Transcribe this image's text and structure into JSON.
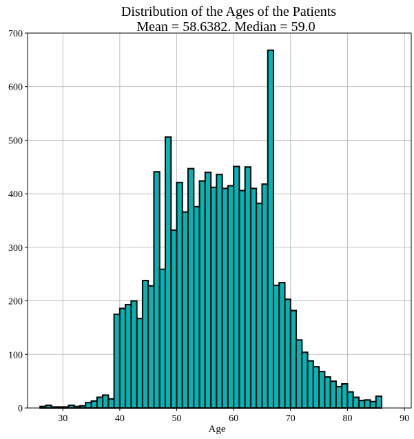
{
  "chart_data": {
    "type": "bar",
    "title": "Distribution of the Ages of the Patients",
    "subtitle": "Mean =  58.6382. Median = 59.0",
    "xlabel": "Age",
    "ylabel": "",
    "xlim": [
      23.8,
      91.2
    ],
    "ylim": [
      0,
      700
    ],
    "xticks": [
      30,
      40,
      50,
      60,
      70,
      80,
      90
    ],
    "yticks": [
      0,
      100,
      200,
      300,
      400,
      500,
      600,
      700
    ],
    "grid": true,
    "bar_color": "#00b5b5",
    "edge_color": "#000000",
    "bin_width": 1,
    "bin_start": 26,
    "values": [
      3,
      5,
      2,
      2,
      2,
      5,
      3,
      4,
      10,
      13,
      20,
      24,
      17,
      175,
      186,
      193,
      200,
      167,
      238,
      228,
      441,
      259,
      506,
      332,
      421,
      366,
      447,
      376,
      424,
      440,
      412,
      436,
      410,
      415,
      451,
      406,
      450,
      410,
      382,
      418,
      668,
      229,
      234,
      203,
      182,
      127,
      104,
      88,
      77,
      68,
      58,
      50,
      40,
      45,
      30,
      20,
      14,
      15,
      12,
      22
    ]
  }
}
